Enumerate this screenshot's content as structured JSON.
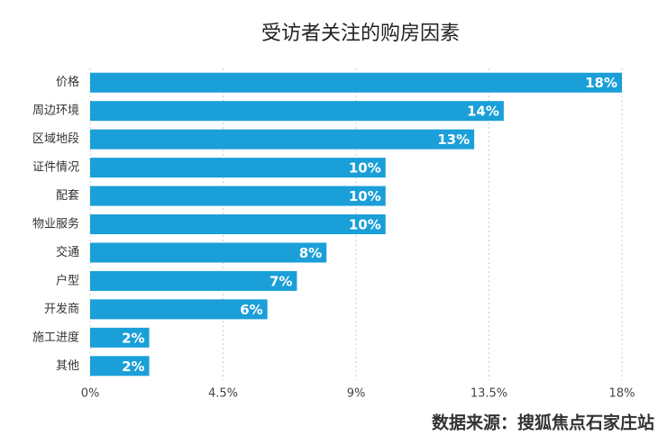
{
  "chart_data": {
    "type": "bar",
    "orientation": "horizontal",
    "title": "受访者关注的购房因素",
    "categories": [
      "价格",
      "周边环境",
      "区域地段",
      "证件情况",
      "配套",
      "物业服务",
      "交通",
      "户型",
      "开发商",
      "施工进度",
      "其他"
    ],
    "values": [
      18,
      14,
      13,
      10,
      10,
      10,
      8,
      7,
      6,
      2,
      2
    ],
    "value_labels": [
      "18%",
      "14%",
      "13%",
      "10%",
      "10%",
      "10%",
      "8%",
      "7%",
      "6%",
      "2%",
      "2%"
    ],
    "color": "#1a9fd8",
    "xlim": [
      0,
      18
    ],
    "xticks": [
      {
        "value": 0,
        "label": "0%"
      },
      {
        "value": 4.5,
        "label": "4.5%"
      },
      {
        "value": 9,
        "label": "9%"
      },
      {
        "value": 13.5,
        "label": "13.5%"
      },
      {
        "value": 18,
        "label": "18%"
      }
    ],
    "grid": true,
    "source": "数据来源：搜狐焦点石家庄站"
  }
}
